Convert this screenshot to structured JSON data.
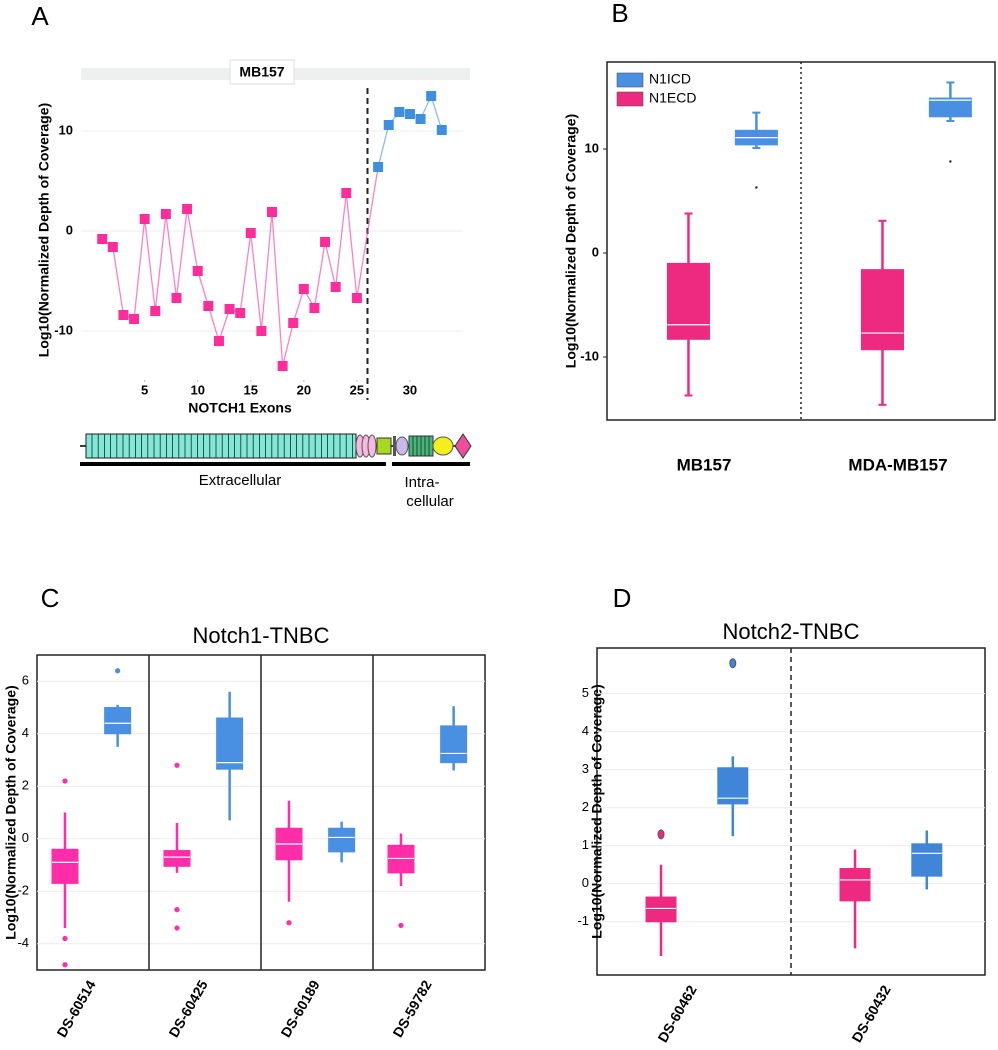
{
  "chart_data": [
    {
      "panel": "A",
      "type": "line",
      "title": "MB157",
      "x_label": "NOTCH1 Exons",
      "y_label": "Log10(Normalized Depth of Coverage)",
      "xlim": [
        -1,
        35
      ],
      "xticks": [
        5,
        10,
        15,
        20,
        25,
        30
      ],
      "ylim": [
        -14.9,
        15.1
      ],
      "yticks": [
        -10,
        0,
        10
      ],
      "grid": true,
      "series": [
        {
          "color": "#ff2d9b",
          "x": [
            1,
            2,
            3,
            4,
            5,
            6,
            7,
            8,
            9,
            10,
            11,
            12,
            13,
            14,
            15,
            16,
            17,
            18,
            19,
            20,
            21,
            22,
            23,
            24,
            25
          ],
          "values": [
            -0.8,
            -1.6,
            -8.4,
            -8.8,
            1.2,
            -8,
            1.7,
            -6.7,
            2.2,
            -4,
            -7.5,
            -11,
            -7.8,
            -8.2,
            -0.2,
            -10,
            1.9,
            -13.5,
            -9.2,
            -5.8,
            -7.7,
            -1.1,
            -5.6,
            3.8,
            -6.7
          ]
        },
        {
          "color": "#3f8fe0",
          "x": [
            27,
            28,
            29,
            30,
            31,
            32,
            33
          ],
          "values": [
            6.4,
            10.6,
            11.9,
            11.7,
            11.2,
            13.5,
            10.1
          ]
        }
      ],
      "annotations": [
        "Extracellular",
        "Intra-",
        "cellular"
      ]
    },
    {
      "panel": "B",
      "type": "box",
      "y_label": "Log10(Normalized Depth of Coverage)",
      "categories": [
        "MB157",
        "MDA-MB157"
      ],
      "ylim": [
        -16.06,
        18.37
      ],
      "yticks": [
        -10,
        0,
        10
      ],
      "legend": "top-left",
      "series": [
        {
          "name": "N1ICD",
          "color": "#4a90e2",
          "values": [
            {
              "min": 10.1,
              "q1": 10.4,
              "median": 11.1,
              "q3": 11.8,
              "max": 13.5,
              "outliers": [
                6.3
              ]
            },
            {
              "min": 12.7,
              "q1": 13.1,
              "median": 14.7,
              "q3": 14.9,
              "max": 16.4,
              "outliers": [
                8.8
              ]
            }
          ]
        },
        {
          "name": "N1ECD",
          "color": "#ee2a80",
          "values": [
            {
              "min": -13.7,
              "q1": -8.3,
              "median": -6.9,
              "q3": -1,
              "max": 3.8
            },
            {
              "min": -14.6,
              "q1": -9.3,
              "median": -7.7,
              "q3": -1.6,
              "max": 3.1
            }
          ]
        }
      ]
    },
    {
      "panel": "C",
      "type": "box",
      "title": "Notch1-TNBC",
      "y_label": "Log10(Normalized Depth of Coverage)",
      "categories": [
        "DS-60514",
        "DS-60425",
        "DS-60189",
        "DS-59782"
      ],
      "ylim": [
        -5,
        7
      ],
      "yticks": [
        -4,
        -2,
        0,
        2,
        4,
        6
      ],
      "grid": true,
      "series": [
        {
          "color": "#ff2da8",
          "values": [
            {
              "min": -3.4,
              "q1": -1.7,
              "median": -0.9,
              "q3": -0.4,
              "max": 1.0,
              "outliers": [
                2.2,
                -3.8,
                -4.8
              ]
            },
            {
              "min": -1.3,
              "q1": -1.05,
              "median": -0.7,
              "q3": -0.45,
              "max": 0.6,
              "outliers": [
                2.8,
                -2.7,
                -3.4
              ]
            },
            {
              "min": -2.4,
              "q1": -0.8,
              "median": -0.2,
              "q3": 0.4,
              "max": 1.45,
              "outliers": [
                -3.2
              ]
            },
            {
              "min": -1.8,
              "q1": -1.3,
              "median": -0.75,
              "q3": -0.25,
              "max": 0.2,
              "outliers": [
                -3.3
              ]
            }
          ]
        },
        {
          "color": "#4a90e2",
          "values": [
            {
              "min": 3.5,
              "q1": 4.0,
              "median": 4.4,
              "q3": 5.0,
              "max": 5.1,
              "outliers": [
                6.4
              ]
            },
            {
              "min": 0.7,
              "q1": 2.65,
              "median": 2.9,
              "q3": 4.6,
              "max": 5.6
            },
            {
              "min": -0.9,
              "q1": -0.5,
              "median": 0.05,
              "q3": 0.4,
              "max": 0.65
            },
            {
              "min": 2.6,
              "q1": 2.9,
              "median": 3.25,
              "q3": 4.3,
              "max": 5.05
            }
          ]
        }
      ]
    },
    {
      "panel": "D",
      "type": "box",
      "title": "Notch2-TNBC",
      "y_label": "Log10(Normalized Depth of Coverage)",
      "categories": [
        "DS-60462",
        "DS-60432"
      ],
      "ylim": [
        -2.4,
        6.2
      ],
      "yticks": [
        -1,
        0,
        1,
        2,
        3,
        4,
        5
      ],
      "grid": true,
      "series": [
        {
          "color": "#ee2a80",
          "values": [
            {
              "min": -1.9,
              "q1": -1.0,
              "median": -0.65,
              "q3": -0.35,
              "max": 0.5,
              "outliers": [
                1.3
              ]
            },
            {
              "min": -1.7,
              "q1": -0.45,
              "median": 0.1,
              "q3": 0.4,
              "max": 0.9
            }
          ]
        },
        {
          "color": "#3f85d8",
          "values": [
            {
              "min": 1.25,
              "q1": 2.1,
              "median": 2.25,
              "q3": 3.05,
              "max": 3.35,
              "outliers": [
                5.8
              ]
            },
            {
              "min": -0.15,
              "q1": 0.2,
              "median": 0.8,
              "q3": 1.05,
              "max": 1.4
            }
          ]
        }
      ]
    }
  ]
}
